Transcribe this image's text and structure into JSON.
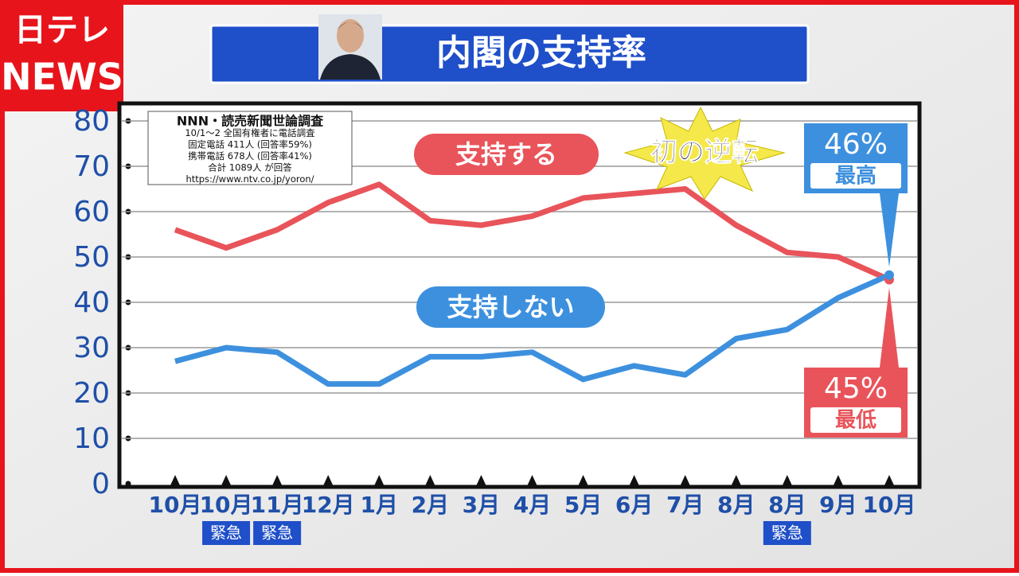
{
  "brand": {
    "top": "日テレ",
    "bottom": "NEWS"
  },
  "chart_data": {
    "type": "line",
    "title": "内閣の支持率",
    "source": [
      "NNN・読売新聞世論調査",
      "10/1〜2 全国有権者に電話調査",
      "固定電話 411人 (回答率59%)",
      "携帯電話 678人 (回答率41%)",
      "合計 1089人 が回答",
      "https://www.ntv.co.jp/yoron/"
    ],
    "annotation": "初の逆転",
    "categories": [
      "10月",
      "10月",
      "11月",
      "12月",
      "1月",
      "2月",
      "3月",
      "4月",
      "5月",
      "6月",
      "7月",
      "8月",
      "8月",
      "9月",
      "10月"
    ],
    "category_notes": [
      null,
      "緊急",
      "緊急",
      null,
      null,
      null,
      null,
      null,
      null,
      null,
      null,
      null,
      "緊急",
      null,
      null
    ],
    "series": [
      {
        "name": "支持する",
        "color": "#e8545a",
        "values": [
          56,
          52,
          56,
          62,
          66,
          58,
          57,
          59,
          63,
          64,
          65,
          57,
          51,
          50,
          45
        ],
        "value_labels": [
          null,
          null,
          null,
          null,
          null,
          null,
          null,
          null,
          null,
          null,
          null,
          null,
          null,
          null,
          "45%"
        ],
        "notes": [
          null,
          null,
          null,
          null,
          null,
          null,
          null,
          null,
          null,
          null,
          null,
          null,
          null,
          null,
          "最低"
        ]
      },
      {
        "name": "支持しない",
        "color": "#3d90de",
        "values": [
          27,
          30,
          29,
          22,
          22,
          28,
          28,
          29,
          23,
          26,
          24,
          32,
          34,
          41,
          46
        ],
        "value_labels": [
          null,
          null,
          null,
          null,
          null,
          null,
          null,
          null,
          null,
          null,
          null,
          null,
          null,
          null,
          "46%"
        ],
        "notes": [
          null,
          null,
          null,
          null,
          null,
          null,
          null,
          null,
          null,
          null,
          null,
          null,
          null,
          null,
          "最高"
        ]
      }
    ],
    "ylim": [
      0,
      80
    ],
    "yticks": [
      0,
      10,
      20,
      30,
      40,
      50,
      60,
      70,
      80
    ],
    "grid": true
  }
}
